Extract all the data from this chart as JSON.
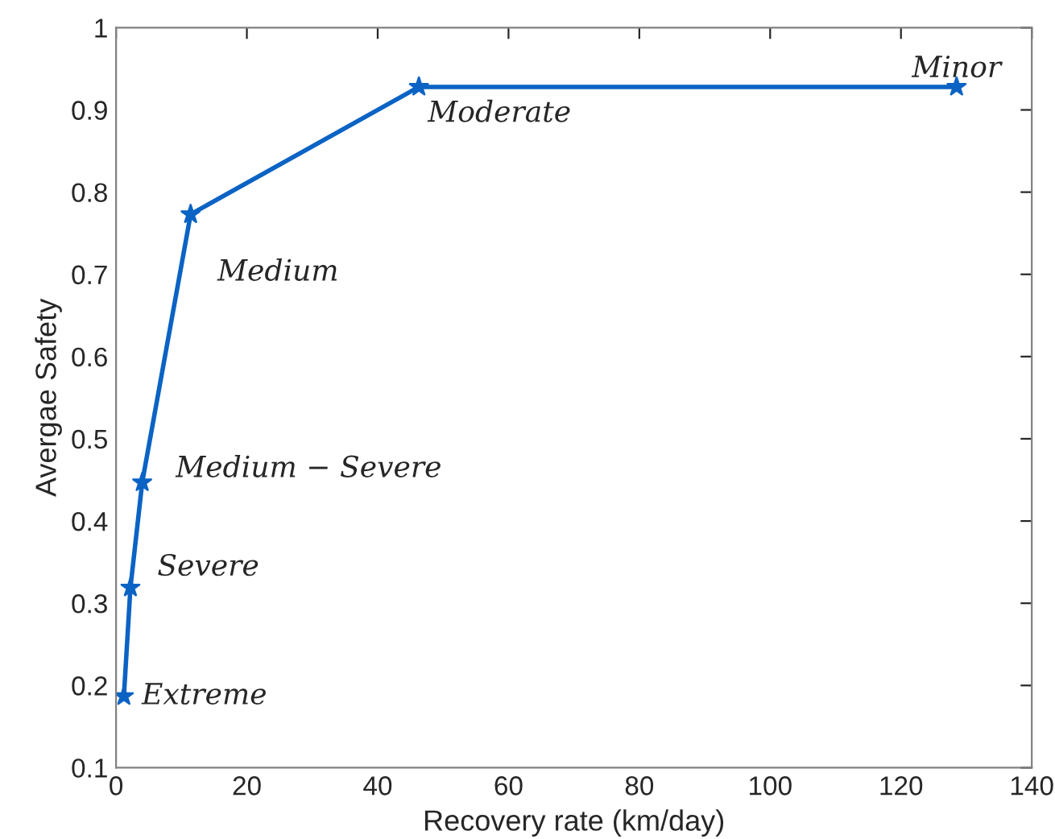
{
  "chart_data": {
    "type": "line",
    "xlabel": "Recovery rate (km/day)",
    "ylabel": "Avergae Safety",
    "x": [
      1.2,
      2.2,
      4.0,
      11.4,
      46.3,
      128.5
    ],
    "series": [
      {
        "color": "#0b63c4",
        "values": [
          0.187,
          0.319,
          0.447,
          0.773,
          0.928,
          0.928
        ]
      }
    ],
    "annotations": [
      {
        "text": "Extreme",
        "x": 1.2,
        "y": 0.187
      },
      {
        "text": "Severe",
        "x": 2.2,
        "y": 0.319
      },
      {
        "text": "Medium − Severe",
        "x": 4.0,
        "y": 0.447
      },
      {
        "text": "Medium",
        "x": 11.4,
        "y": 0.773
      },
      {
        "text": "Moderate",
        "x": 46.3,
        "y": 0.928
      },
      {
        "text": "Minor",
        "x": 128.5,
        "y": 0.928
      }
    ],
    "xlim": [
      0,
      140
    ],
    "xticks": [
      0,
      20,
      40,
      60,
      80,
      100,
      120,
      140
    ],
    "ylim": [
      0.1,
      1
    ],
    "yticks": [
      0.1,
      0.2,
      0.3,
      0.4,
      0.5,
      0.6,
      0.7,
      0.8,
      0.9,
      {
        "value": 1,
        "label": "1"
      }
    ],
    "grid": false,
    "legend": false,
    "marker": "star",
    "line_style": "solid"
  }
}
